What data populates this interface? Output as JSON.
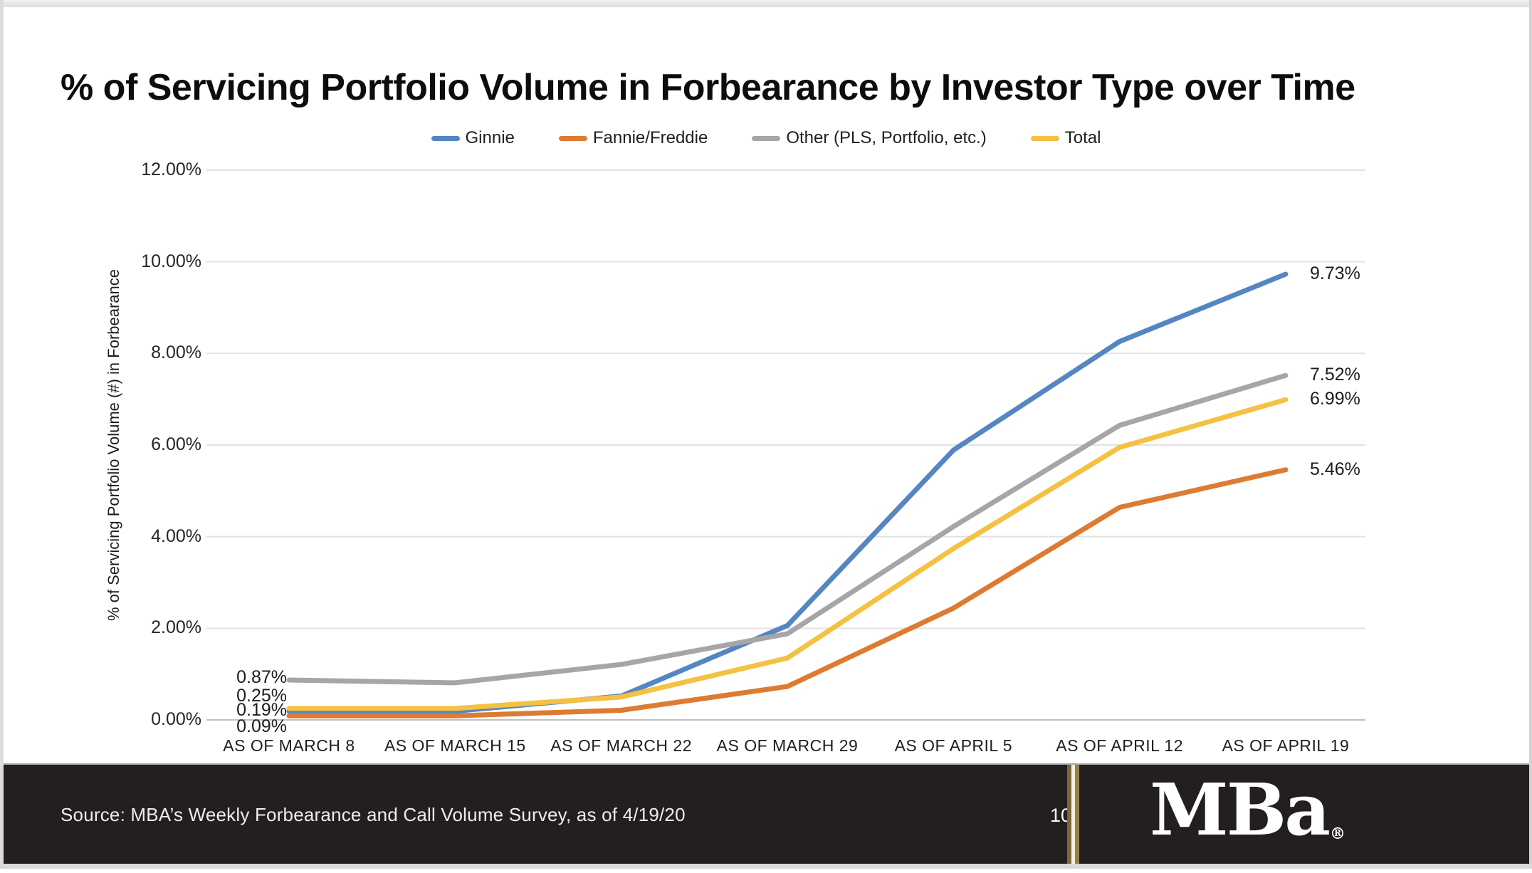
{
  "page": {
    "title": "% of Servicing Portfolio Volume in Forbearance by Investor Type over Time",
    "source": "Source: MBA’s Weekly Forbearance and Call Volume Survey, as of 4/19/20",
    "page_number": "10",
    "logo_text": "MBa",
    "logo_registered": "®"
  },
  "colors": {
    "ginnie_blue": "#5586c2",
    "fannie_orange": "#dd7b33",
    "other_gray": "#a6a6a6",
    "total_gold": "#f5c142",
    "gridline": "#e2e2e2",
    "axis_line": "#bfbfbf",
    "footer_bg": "#231f20",
    "separator_gold": "#8a7040"
  },
  "chart_data": {
    "type": "line",
    "title": "% of Servicing Portfolio Volume in Forbearance by Investor Type over Time",
    "xlabel": "",
    "ylabel": "% of Servicing Portfolio Volume (#) in Forbearance",
    "ylim": [
      0,
      12
    ],
    "grid": true,
    "legend_position": "top",
    "categories": [
      "AS OF MARCH 8",
      "AS OF MARCH 15",
      "AS OF MARCH 22",
      "AS OF MARCH 29",
      "AS OF APRIL 5",
      "AS OF APRIL 12",
      "AS OF APRIL 19"
    ],
    "y_ticks": [
      {
        "label": "0.00%",
        "value": 0
      },
      {
        "label": "2.00%",
        "value": 2
      },
      {
        "label": "4.00%",
        "value": 4
      },
      {
        "label": "6.00%",
        "value": 6
      },
      {
        "label": "8.00%",
        "value": 8
      },
      {
        "label": "10.00%",
        "value": 10
      },
      {
        "label": "12.00%",
        "value": 12
      }
    ],
    "series": [
      {
        "name": "Ginnie",
        "color": "#5586c2",
        "values": [
          0.19,
          0.19,
          0.52,
          2.06,
          5.89,
          8.26,
          9.73
        ]
      },
      {
        "name": "Fannie/Freddie",
        "color": "#dd7b33",
        "values": [
          0.09,
          0.09,
          0.21,
          0.73,
          2.44,
          4.64,
          5.46
        ]
      },
      {
        "name": "Other (PLS, Portfolio, etc.)",
        "color": "#a6a6a6",
        "values": [
          0.87,
          0.81,
          1.21,
          1.88,
          4.22,
          6.43,
          7.52
        ]
      },
      {
        "name": "Total",
        "color": "#f5c142",
        "values": [
          0.25,
          0.25,
          0.5,
          1.35,
          3.74,
          5.95,
          6.99
        ]
      }
    ],
    "point_labels": {
      "left": [
        "0.87%",
        "0.25%",
        "0.19%",
        "0.09%"
      ],
      "right": [
        {
          "text": "9.73%",
          "value": 9.73
        },
        {
          "text": "7.52%",
          "value": 7.52
        },
        {
          "text": "6.99%",
          "value": 6.99
        },
        {
          "text": "5.46%",
          "value": 5.46
        }
      ]
    }
  }
}
